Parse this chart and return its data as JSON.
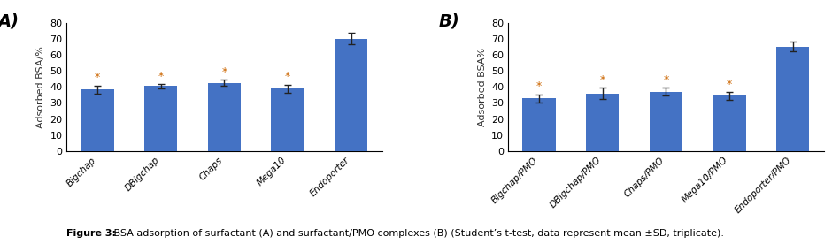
{
  "panel_A": {
    "categories": [
      "Bigchap",
      "DBigchap",
      "Chaps",
      "Mega10",
      "Endoporter"
    ],
    "values": [
      38.5,
      40.5,
      42.5,
      39.0,
      70.0
    ],
    "errors": [
      2.5,
      1.5,
      2.0,
      2.5,
      3.5
    ],
    "ylabel": "Adsorbed BSA/%",
    "ylim": [
      0,
      80
    ],
    "yticks": [
      0,
      10,
      20,
      30,
      40,
      50,
      60,
      70,
      80
    ],
    "label": "A)",
    "starred": [
      true,
      true,
      true,
      true,
      false
    ]
  },
  "panel_B": {
    "categories": [
      "Bigchap/PMO",
      "DBigchap/PMO",
      "Chaps/PMO",
      "Mega10/PMO",
      "Endoporter/PMO"
    ],
    "values": [
      33.0,
      36.0,
      37.0,
      34.5,
      65.0
    ],
    "errors": [
      2.5,
      3.5,
      2.5,
      2.5,
      3.0
    ],
    "ylabel": "Adsorbed BSA%",
    "ylim": [
      0,
      80
    ],
    "yticks": [
      0,
      10,
      20,
      30,
      40,
      50,
      60,
      70,
      80
    ],
    "label": "B)",
    "starred": [
      true,
      true,
      true,
      true,
      false
    ]
  },
  "bar_color": "#4472C4",
  "error_color": "#222222",
  "star_color": "#CC6600",
  "background_color": "#FFFFFF",
  "caption_prefix": "Figure 3:",
  "caption_rest": " BSA adsorption of surfactant (A) and surfactant/PMO complexes (B) (Student’s t-test, data represent mean ±SD, triplicate).",
  "fig_width": 9.4,
  "fig_height": 2.85,
  "dpi": 100
}
